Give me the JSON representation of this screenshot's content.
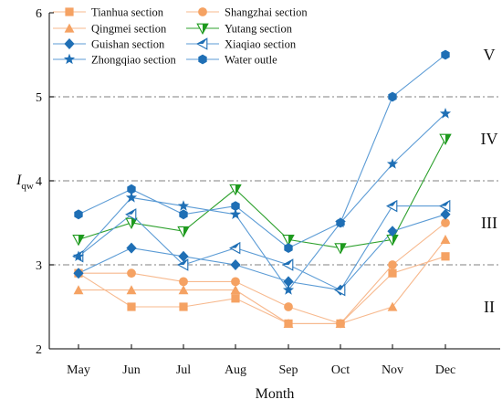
{
  "chart_data": {
    "type": "line",
    "xlabel": "Month",
    "ylabel": "I",
    "ylabel_sub": "qw",
    "ylim": [
      2,
      6
    ],
    "yticks": [
      "2",
      "3",
      "4",
      "5",
      "6"
    ],
    "categories": [
      "May",
      "Jun",
      "Jul",
      "Aug",
      "Sep",
      "Oct",
      "Nov",
      "Dec"
    ],
    "reference_lines": [
      3,
      4,
      5
    ],
    "grade_labels": [
      {
        "text": "II",
        "y": 2.5
      },
      {
        "text": "III",
        "y": 3.5
      },
      {
        "text": "IV",
        "y": 4.5
      },
      {
        "text": "V",
        "y": 5.5
      }
    ],
    "series": [
      {
        "name": "Tianhua section",
        "marker": "square",
        "color": "#f7b98e",
        "fill": "#f5a263",
        "values": [
          2.9,
          2.5,
          2.5,
          2.6,
          2.3,
          2.3,
          2.9,
          3.1
        ]
      },
      {
        "name": "Shangzhai section",
        "marker": "circle",
        "color": "#f7b98e",
        "fill": "#f5a263",
        "values": [
          2.9,
          2.9,
          2.8,
          2.8,
          2.5,
          2.3,
          3.0,
          3.5
        ]
      },
      {
        "name": "Qingmei section",
        "marker": "triangle-up",
        "color": "#f7b98e",
        "fill": "#f5a263",
        "values": [
          2.7,
          2.7,
          2.7,
          2.7,
          2.3,
          2.3,
          2.5,
          3.3
        ]
      },
      {
        "name": "Yutang section",
        "marker": "triangle-down-half",
        "color": "#2ca02c",
        "fill": "#1e9a1e",
        "values": [
          3.3,
          3.5,
          3.4,
          3.9,
          3.3,
          3.2,
          3.3,
          4.5
        ]
      },
      {
        "name": "Guishan section",
        "marker": "diamond",
        "color": "#5b9bd5",
        "fill": "#1f6fb5",
        "values": [
          2.9,
          3.2,
          3.1,
          3.0,
          2.8,
          2.7,
          3.4,
          3.6
        ]
      },
      {
        "name": "Xiaqiao section",
        "marker": "triangle-left-half",
        "color": "#5b9bd5",
        "fill": "#1f6fb5",
        "values": [
          3.1,
          3.6,
          3.0,
          3.2,
          3.0,
          2.7,
          3.7,
          3.7
        ]
      },
      {
        "name": "Zhongqiao section",
        "marker": "star",
        "color": "#5b9bd5",
        "fill": "#1f6fb5",
        "values": [
          3.1,
          3.8,
          3.7,
          3.6,
          2.7,
          3.5,
          4.2,
          4.8
        ]
      },
      {
        "name": "Water outle",
        "marker": "hexagon",
        "color": "#5b9bd5",
        "fill": "#1f6fb5",
        "values": [
          3.6,
          3.9,
          3.6,
          3.7,
          3.2,
          3.5,
          5.0,
          5.5
        ]
      }
    ],
    "legend_position": "top-left",
    "grid": false
  }
}
